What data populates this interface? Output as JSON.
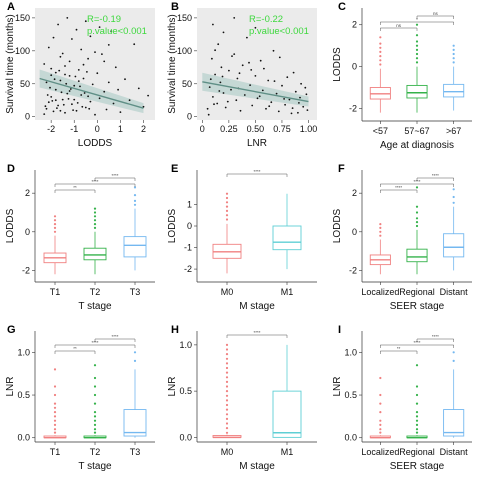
{
  "colors": {
    "red": "#f08080",
    "green": "#34b24a",
    "blue": "#74b8f0",
    "cyan": "#5fcfd4",
    "stat": "#3ed83e",
    "fit": "#5f8f86",
    "band": "#bcd3d0",
    "panel_bg": "#ebebeb"
  },
  "chart_data": [
    {
      "panel": "A",
      "type": "scatter",
      "xlabel": "LODDS",
      "ylabel": "Survival time (months)",
      "xlim": [
        -2.7,
        2.5
      ],
      "ylim": [
        -5,
        165
      ],
      "xticks": [
        "-2",
        "-1",
        "0",
        "1",
        "2"
      ],
      "yticks": [
        "0",
        "50",
        "100",
        "150"
      ],
      "annotation": [
        "R=-0.19",
        "p.value<0.001"
      ],
      "fit": {
        "x": [
          -2.5,
          2.0
        ],
        "y": [
          58,
          13
        ]
      },
      "points": [
        [
          -2.3,
          4
        ],
        [
          -2.2,
          12
        ],
        [
          -2.1,
          22
        ],
        [
          -2.0,
          30
        ],
        [
          -1.9,
          8
        ],
        [
          -1.8,
          41
        ],
        [
          -1.7,
          17
        ],
        [
          -1.6,
          55
        ],
        [
          -1.5,
          26
        ],
        [
          -1.4,
          6
        ],
        [
          -1.3,
          35
        ],
        [
          -1.2,
          62
        ],
        [
          -1.1,
          19
        ],
        [
          -1.0,
          47
        ],
        [
          -0.9,
          9
        ],
        [
          -0.8,
          71
        ],
        [
          -0.7,
          33
        ],
        [
          -0.6,
          58
        ],
        [
          -0.5,
          14
        ],
        [
          -0.4,
          88
        ],
        [
          -0.3,
          23
        ],
        [
          -0.2,
          49
        ],
        [
          -0.1,
          3
        ],
        [
          0.0,
          66
        ],
        [
          0.1,
          28
        ],
        [
          0.2,
          95
        ],
        [
          0.3,
          38
        ],
        [
          0.4,
          11
        ],
        [
          0.5,
          52
        ],
        [
          0.6,
          130
        ],
        [
          0.7,
          20
        ],
        [
          0.8,
          75
        ],
        [
          0.9,
          41
        ],
        [
          1.0,
          7
        ],
        [
          1.2,
          57
        ],
        [
          1.4,
          25
        ],
        [
          1.6,
          110
        ],
        [
          1.8,
          43
        ],
        [
          2.0,
          15
        ],
        [
          2.2,
          32
        ],
        [
          -2.3,
          80
        ],
        [
          -2.1,
          105
        ],
        [
          -1.9,
          120
        ],
        [
          -1.7,
          140
        ],
        [
          -1.5,
          96
        ],
        [
          -1.3,
          150
        ],
        [
          -1.1,
          118
        ],
        [
          -0.9,
          132
        ],
        [
          -0.7,
          102
        ],
        [
          -0.5,
          145
        ],
        [
          -0.3,
          122
        ],
        [
          -0.1,
          98
        ],
        [
          0.1,
          136
        ],
        [
          0.3,
          84
        ],
        [
          0.5,
          109
        ],
        [
          -1.8,
          67
        ],
        [
          -1.6,
          91
        ],
        [
          -1.4,
          77
        ],
        [
          -1.2,
          84
        ],
        [
          -2.0,
          63
        ],
        [
          -2.25,
          16
        ],
        [
          -2.15,
          33
        ],
        [
          -2.05,
          44
        ],
        [
          -1.95,
          24
        ],
        [
          -1.85,
          57
        ],
        [
          -1.75,
          13
        ],
        [
          -1.65,
          70
        ],
        [
          -1.55,
          37
        ],
        [
          -1.45,
          18
        ],
        [
          -1.35,
          50
        ],
        [
          -1.25,
          27
        ],
        [
          -1.15,
          42
        ],
        [
          -1.05,
          10
        ],
        [
          -0.95,
          61
        ],
        [
          -0.85,
          21
        ],
        [
          -0.75,
          46
        ],
        [
          -0.65,
          15
        ],
        [
          -0.55,
          36
        ],
        [
          -0.45,
          68
        ],
        [
          -0.35,
          12
        ],
        [
          -2.2,
          52
        ],
        [
          -2.0,
          73
        ],
        [
          -1.8,
          25
        ],
        [
          -1.6,
          9
        ],
        [
          -1.4,
          64
        ],
        [
          -1.2,
          39
        ],
        [
          -1.0,
          26
        ],
        [
          -0.8,
          54
        ],
        [
          -0.6,
          79
        ],
        [
          -0.4,
          31
        ]
      ]
    },
    {
      "panel": "B",
      "type": "scatter",
      "xlabel": "LNR",
      "ylabel": "Survival time (months)",
      "xlim": [
        -0.05,
        1.08
      ],
      "ylim": [
        -5,
        165
      ],
      "xticks": [
        "0",
        "0.25",
        "0.50",
        "0.75",
        "1.00"
      ],
      "yticks": [
        "0",
        "50",
        "100",
        "150"
      ],
      "annotation": [
        "R=-0.22",
        "p.value<0.001"
      ],
      "fit": {
        "x": [
          0.0,
          1.0
        ],
        "y": [
          53,
          23
        ]
      },
      "points": [
        [
          0.05,
          12
        ],
        [
          0.07,
          45
        ],
        [
          0.09,
          88
        ],
        [
          0.1,
          30
        ],
        [
          0.12,
          64
        ],
        [
          0.14,
          20
        ],
        [
          0.15,
          110
        ],
        [
          0.17,
          52
        ],
        [
          0.2,
          36
        ],
        [
          0.22,
          14
        ],
        [
          0.25,
          70
        ],
        [
          0.27,
          41
        ],
        [
          0.3,
          95
        ],
        [
          0.32,
          25
        ],
        [
          0.33,
          58
        ],
        [
          0.36,
          9
        ],
        [
          0.38,
          78
        ],
        [
          0.4,
          33
        ],
        [
          0.42,
          120
        ],
        [
          0.45,
          48
        ],
        [
          0.47,
          17
        ],
        [
          0.5,
          62
        ],
        [
          0.52,
          28
        ],
        [
          0.55,
          85
        ],
        [
          0.57,
          40
        ],
        [
          0.6,
          12
        ],
        [
          0.62,
          55
        ],
        [
          0.65,
          22
        ],
        [
          0.67,
          100
        ],
        [
          0.7,
          35
        ],
        [
          0.72,
          8
        ],
        [
          0.75,
          47
        ],
        [
          0.78,
          18
        ],
        [
          0.8,
          60
        ],
        [
          0.82,
          26
        ],
        [
          0.85,
          13
        ],
        [
          0.88,
          38
        ],
        [
          0.9,
          6
        ],
        [
          0.92,
          29
        ],
        [
          0.95,
          15
        ],
        [
          0.97,
          44
        ],
        [
          0.99,
          10
        ],
        [
          0.1,
          140
        ],
        [
          0.2,
          128
        ],
        [
          0.3,
          150
        ],
        [
          0.5,
          135
        ],
        [
          0.12,
          101
        ],
        [
          0.18,
          75
        ],
        [
          0.28,
          92
        ],
        [
          0.35,
          66
        ],
        [
          0.44,
          82
        ],
        [
          0.58,
          73
        ],
        [
          0.68,
          54
        ],
        [
          0.73,
          90
        ],
        [
          0.86,
          67
        ],
        [
          0.93,
          50
        ],
        [
          0.08,
          57
        ],
        [
          0.16,
          39
        ],
        [
          0.24,
          23
        ],
        [
          0.34,
          43
        ],
        [
          0.46,
          71
        ],
        [
          0.54,
          31
        ],
        [
          0.63,
          16
        ],
        [
          0.77,
          27
        ],
        [
          0.84,
          5
        ],
        [
          0.91,
          21
        ],
        [
          0.98,
          34
        ],
        [
          0.06,
          3
        ],
        [
          0.11,
          19
        ],
        [
          0.19,
          61
        ]
      ]
    },
    {
      "panel": "C",
      "type": "box",
      "xlabel": "Age at diagnosis",
      "ylabel": "LODDS",
      "categories": [
        "<57",
        "57~67",
        ">67"
      ],
      "colors": [
        "red",
        "green",
        "blue"
      ],
      "ylim": [
        -2.6,
        2.8
      ],
      "yticks": [
        "-2",
        "0",
        "2"
      ],
      "boxes": [
        {
          "min": -2.2,
          "q1": -1.55,
          "median": -1.3,
          "q3": -1.0,
          "max": -0.1,
          "outliers": [
            0.1,
            0.3,
            0.5,
            0.7,
            0.9,
            1.1,
            1.4
          ]
        },
        {
          "min": -2.2,
          "q1": -1.5,
          "median": -1.25,
          "q3": -0.9,
          "max": 0.0,
          "outliers": [
            0.2,
            0.4,
            0.6,
            0.8,
            1.0,
            1.2,
            1.5,
            2.0
          ]
        },
        {
          "min": -2.1,
          "q1": -1.45,
          "median": -1.2,
          "q3": -0.85,
          "max": 0.0,
          "outliers": [
            0.2,
            0.4,
            0.6,
            0.8,
            1.0
          ]
        }
      ],
      "brackets": [
        {
          "from": 0,
          "to": 1,
          "label": "ns"
        },
        {
          "from": 0,
          "to": 2,
          "label": "*"
        },
        {
          "from": 1,
          "to": 2,
          "label": "ns"
        }
      ]
    },
    {
      "panel": "D",
      "type": "box",
      "xlabel": "T stage",
      "ylabel": "LODDS",
      "categories": [
        "T1",
        "T2",
        "T3"
      ],
      "colors": [
        "red",
        "green",
        "blue"
      ],
      "ylim": [
        -2.6,
        3.2
      ],
      "yticks": [
        "-2",
        "0",
        "2"
      ],
      "boxes": [
        {
          "min": -2.2,
          "q1": -1.6,
          "median": -1.35,
          "q3": -1.1,
          "max": -0.2,
          "outliers": [
            0.0,
            0.2,
            0.4,
            0.6,
            0.8
          ]
        },
        {
          "min": -2.2,
          "q1": -1.45,
          "median": -1.2,
          "q3": -0.85,
          "max": 0.0,
          "outliers": [
            0.2,
            0.4,
            0.6,
            0.8,
            1.0,
            1.2
          ]
        },
        {
          "min": -2.0,
          "q1": -1.3,
          "median": -0.7,
          "q3": -0.25,
          "max": 1.2,
          "outliers": [
            1.4,
            1.6,
            1.9,
            2.3
          ]
        }
      ],
      "brackets": [
        {
          "from": 0,
          "to": 1,
          "label": "**"
        },
        {
          "from": 0,
          "to": 2,
          "label": "****"
        },
        {
          "from": 1,
          "to": 2,
          "label": "****"
        }
      ]
    },
    {
      "panel": "E",
      "type": "box",
      "xlabel": "M stage",
      "ylabel": "LODDS",
      "categories": [
        "M0",
        "M1"
      ],
      "colors": [
        "red",
        "cyan"
      ],
      "ylim": [
        -2.6,
        2.6
      ],
      "yticks": [
        "-2",
        "-1",
        "0",
        "1"
      ],
      "boxes": [
        {
          "min": -2.2,
          "q1": -1.5,
          "median": -1.2,
          "q3": -0.85,
          "max": 0.1,
          "outliers": [
            0.3,
            0.5,
            0.7,
            0.9,
            1.1,
            1.3,
            1.5
          ]
        },
        {
          "min": -2.0,
          "q1": -1.1,
          "median": -0.75,
          "q3": 0.0,
          "max": 1.5,
          "outliers": []
        }
      ],
      "brackets": [
        {
          "from": 0,
          "to": 1,
          "label": "****"
        }
      ]
    },
    {
      "panel": "F",
      "type": "box",
      "xlabel": "SEER stage",
      "ylabel": "LODDS",
      "categories": [
        "Localized",
        "Regional",
        "Distant"
      ],
      "colors": [
        "red",
        "green",
        "blue"
      ],
      "ylim": [
        -2.6,
        3.2
      ],
      "yticks": [
        "-2",
        "0",
        "2"
      ],
      "boxes": [
        {
          "min": -2.2,
          "q1": -1.7,
          "median": -1.45,
          "q3": -1.2,
          "max": -0.4,
          "outliers": [
            -0.2,
            0.0,
            0.2,
            0.4
          ]
        },
        {
          "min": -2.2,
          "q1": -1.55,
          "median": -1.3,
          "q3": -0.9,
          "max": 0.1,
          "outliers": [
            0.3,
            0.5,
            0.7,
            1.0,
            1.3,
            2.3
          ]
        },
        {
          "min": -2.0,
          "q1": -1.3,
          "median": -0.8,
          "q3": -0.1,
          "max": 1.3,
          "outliers": [
            1.5,
            1.8,
            2.2
          ]
        }
      ],
      "brackets": [
        {
          "from": 0,
          "to": 1,
          "label": "****"
        },
        {
          "from": 0,
          "to": 2,
          "label": "****"
        },
        {
          "from": 1,
          "to": 2,
          "label": "****"
        }
      ]
    },
    {
      "panel": "G",
      "type": "box",
      "xlabel": "T stage",
      "ylabel": "LNR",
      "categories": [
        "T1",
        "T2",
        "T3"
      ],
      "colors": [
        "red",
        "green",
        "blue"
      ],
      "ylim": [
        -0.05,
        1.25
      ],
      "yticks": [
        "0.0",
        "0.5",
        "1.0"
      ],
      "boxes": [
        {
          "min": 0.0,
          "q1": 0.0,
          "median": 0.0,
          "q3": 0.02,
          "max": 0.03,
          "outliers": [
            0.06,
            0.1,
            0.15,
            0.2,
            0.25,
            0.3,
            0.35,
            0.4,
            0.5,
            0.6,
            0.8
          ]
        },
        {
          "min": 0.0,
          "q1": 0.0,
          "median": 0.0,
          "q3": 0.02,
          "max": 0.03,
          "outliers": [
            0.06,
            0.1,
            0.15,
            0.2,
            0.25,
            0.3,
            0.4,
            0.5,
            0.6,
            0.7,
            0.85
          ]
        },
        {
          "min": 0.0,
          "q1": 0.02,
          "median": 0.06,
          "q3": 0.33,
          "max": 0.8,
          "outliers": [
            0.9,
            1.0
          ]
        }
      ],
      "brackets": [
        {
          "from": 0,
          "to": 1,
          "label": "**"
        },
        {
          "from": 0,
          "to": 2,
          "label": "****"
        },
        {
          "from": 1,
          "to": 2,
          "label": "****"
        }
      ]
    },
    {
      "panel": "H",
      "type": "box",
      "xlabel": "M stage",
      "ylabel": "LNR",
      "categories": [
        "M0",
        "M1"
      ],
      "colors": [
        "red",
        "cyan"
      ],
      "ylim": [
        -0.05,
        1.15
      ],
      "yticks": [
        "0.0",
        "0.5",
        "1.0"
      ],
      "boxes": [
        {
          "min": 0.0,
          "q1": 0.0,
          "median": 0.0,
          "q3": 0.02,
          "max": 0.03,
          "outliers": [
            0.05,
            0.1,
            0.15,
            0.2,
            0.25,
            0.3,
            0.35,
            0.4,
            0.45,
            0.5,
            0.55,
            0.6,
            0.65,
            0.7,
            0.75,
            0.8,
            0.85,
            0.9,
            0.95,
            1.0
          ]
        },
        {
          "min": 0.0,
          "q1": 0.0,
          "median": 0.05,
          "q3": 0.5,
          "max": 1.0,
          "outliers": []
        }
      ],
      "brackets": [
        {
          "from": 0,
          "to": 1,
          "label": "****"
        }
      ]
    },
    {
      "panel": "I",
      "type": "box",
      "xlabel": "SEER stage",
      "ylabel": "LNR",
      "categories": [
        "Localized",
        "Regional",
        "Distant"
      ],
      "colors": [
        "red",
        "green",
        "blue"
      ],
      "ylim": [
        -0.05,
        1.25
      ],
      "yticks": [
        "0.0",
        "0.5",
        "1.0"
      ],
      "boxes": [
        {
          "min": 0.0,
          "q1": 0.0,
          "median": 0.0,
          "q3": 0.02,
          "max": 0.03,
          "outliers": [
            0.06,
            0.1,
            0.15,
            0.2,
            0.3,
            0.4,
            0.5,
            0.7
          ]
        },
        {
          "min": 0.0,
          "q1": 0.0,
          "median": 0.0,
          "q3": 0.02,
          "max": 0.03,
          "outliers": [
            0.06,
            0.1,
            0.15,
            0.2,
            0.25,
            0.3,
            0.4,
            0.5,
            0.6,
            0.85
          ]
        },
        {
          "min": 0.0,
          "q1": 0.02,
          "median": 0.06,
          "q3": 0.33,
          "max": 0.8,
          "outliers": [
            0.9,
            1.0
          ]
        }
      ],
      "brackets": [
        {
          "from": 0,
          "to": 1,
          "label": "**"
        },
        {
          "from": 0,
          "to": 2,
          "label": "****"
        },
        {
          "from": 1,
          "to": 2,
          "label": "****"
        }
      ]
    }
  ]
}
